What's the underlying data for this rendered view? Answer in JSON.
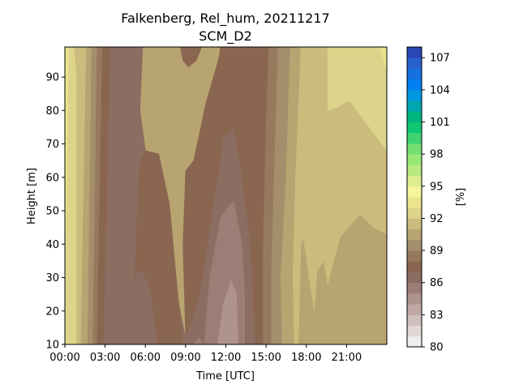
{
  "chart_data": {
    "type": "filled-contour",
    "title": "Falkenberg, Rel_hum, 20211217",
    "subtitle": "SCM_D2",
    "xlabel": "Time [UTC]",
    "ylabel": "Height [m]",
    "xlim": [
      0,
      24
    ],
    "ylim": [
      10,
      99
    ],
    "x_ticks": [
      {
        "value": 0,
        "label": "00:00"
      },
      {
        "value": 3,
        "label": "03:00"
      },
      {
        "value": 6,
        "label": "06:00"
      },
      {
        "value": 9,
        "label": "09:00"
      },
      {
        "value": 12,
        "label": "12:00"
      },
      {
        "value": 15,
        "label": "15:00"
      },
      {
        "value": 18,
        "label": "18:00"
      },
      {
        "value": 21,
        "label": "21:00"
      }
    ],
    "y_ticks": [
      10,
      20,
      30,
      40,
      50,
      60,
      70,
      80,
      90
    ],
    "grid": false,
    "colorbar": {
      "label": "[%]",
      "range": [
        80,
        108
      ],
      "step": 1,
      "ticks": [
        80,
        83,
        86,
        89,
        92,
        95,
        98,
        101,
        104,
        107
      ],
      "colors": [
        "#efeded",
        "#dfd8d6",
        "#cfbfbd",
        "#bfa8a4",
        "#af938d",
        "#9e7d76",
        "#8c6d62",
        "#8a6650",
        "#977a5e",
        "#a58e6c",
        "#b8a470",
        "#cbbb7d",
        "#dcd48a",
        "#ece48c",
        "#f7f59a",
        "#ddee90",
        "#b9e980",
        "#98e878",
        "#72de72",
        "#3fd471",
        "#11c872",
        "#00b77e",
        "#00a6ad",
        "#0096e0",
        "#0080f0",
        "#1870e0",
        "#2860cc",
        "#2a48b4"
      ]
    },
    "contour_regions": [
      {
        "level": 93,
        "points": [
          [
            0,
            10
          ],
          [
            0,
            99
          ],
          [
            0.3,
            99
          ]
        ]
      },
      {
        "level": 92,
        "points": [
          [
            0,
            10
          ],
          [
            0.3,
            99
          ],
          [
            0.7,
            99
          ],
          [
            0.9,
            90
          ],
          [
            0.9,
            10
          ]
        ]
      },
      {
        "level": 91,
        "points": [
          [
            0.9,
            10
          ],
          [
            0.9,
            90
          ],
          [
            0.7,
            99
          ],
          [
            1.6,
            99
          ],
          [
            1.2,
            10
          ]
        ]
      },
      {
        "level": 90,
        "points": [
          [
            1.2,
            10
          ],
          [
            1.6,
            99
          ],
          [
            2.0,
            99
          ],
          [
            1.7,
            10
          ]
        ]
      },
      {
        "level": 89,
        "points": [
          [
            1.7,
            10
          ],
          [
            2.0,
            99
          ],
          [
            2.4,
            99
          ],
          [
            2.1,
            10
          ]
        ]
      },
      {
        "level": 88,
        "points": [
          [
            2.1,
            10
          ],
          [
            2.4,
            99
          ],
          [
            2.8,
            99
          ],
          [
            2.4,
            10
          ]
        ]
      },
      {
        "level": 87,
        "points": [
          [
            2.4,
            10
          ],
          [
            2.8,
            99
          ],
          [
            3.4,
            99
          ],
          [
            2.9,
            10
          ]
        ]
      },
      {
        "level": 86,
        "points": [
          [
            2.9,
            10
          ],
          [
            3.4,
            99
          ],
          [
            5.8,
            99
          ],
          [
            5.6,
            80
          ],
          [
            6.0,
            68
          ],
          [
            7.5,
            40
          ],
          [
            8.5,
            22
          ],
          [
            9.0,
            12
          ],
          [
            10.0,
            24
          ],
          [
            11.0,
            50
          ],
          [
            11.8,
            72
          ],
          [
            12.6,
            75
          ],
          [
            13.2,
            60
          ],
          [
            13.7,
            45
          ],
          [
            14.0,
            30
          ],
          [
            14.2,
            10
          ]
        ]
      },
      {
        "level": 87,
        "points": [
          [
            14.2,
            10
          ],
          [
            14.0,
            30
          ],
          [
            13.7,
            45
          ],
          [
            13.2,
            60
          ],
          [
            12.6,
            75
          ],
          [
            11.8,
            72
          ],
          [
            11.0,
            50
          ],
          [
            10.0,
            24
          ],
          [
            9.0,
            12
          ],
          [
            8.8,
            40
          ],
          [
            9.0,
            62
          ],
          [
            9.6,
            65
          ],
          [
            10.5,
            82
          ],
          [
            11.5,
            96
          ],
          [
            11.6,
            99
          ],
          [
            15.2,
            99
          ],
          [
            15.0,
            75
          ],
          [
            14.8,
            40
          ],
          [
            14.8,
            10
          ]
        ]
      },
      {
        "level": 88,
        "points": [
          [
            14.8,
            10
          ],
          [
            14.8,
            40
          ],
          [
            15.0,
            75
          ],
          [
            15.2,
            99
          ],
          [
            15.9,
            99
          ],
          [
            15.6,
            60
          ],
          [
            15.4,
            30
          ],
          [
            15.4,
            10
          ]
        ]
      },
      {
        "level": 89,
        "points": [
          [
            15.4,
            10
          ],
          [
            15.4,
            30
          ],
          [
            15.6,
            60
          ],
          [
            15.9,
            99
          ],
          [
            16.8,
            99
          ],
          [
            16.5,
            60
          ],
          [
            16.1,
            30
          ],
          [
            16.2,
            10
          ]
        ]
      },
      {
        "level": 90,
        "points": [
          [
            16.2,
            10
          ],
          [
            16.1,
            30
          ],
          [
            16.5,
            60
          ],
          [
            16.8,
            99
          ],
          [
            17.6,
            99
          ],
          [
            17.2,
            60
          ],
          [
            17.0,
            30
          ],
          [
            17.1,
            10
          ]
        ]
      },
      {
        "level": 91,
        "points": [
          [
            17.1,
            10
          ],
          [
            17.0,
            30
          ],
          [
            17.2,
            60
          ],
          [
            17.6,
            99
          ],
          [
            19.6,
            99
          ],
          [
            19.6,
            80
          ],
          [
            20.3,
            81
          ],
          [
            21.2,
            83
          ],
          [
            22.5,
            76
          ],
          [
            24,
            68
          ],
          [
            24,
            43
          ],
          [
            23,
            45
          ],
          [
            22.0,
            49
          ],
          [
            20.5,
            42
          ],
          [
            19.6,
            28
          ],
          [
            19.3,
            35
          ],
          [
            18.8,
            32
          ],
          [
            18.6,
            20
          ],
          [
            18.2,
            30
          ],
          [
            17.8,
            42
          ],
          [
            17.6,
            40
          ],
          [
            17.4,
            10
          ]
        ]
      },
      {
        "level": 92,
        "points": [
          [
            19.6,
            99
          ],
          [
            24,
            99
          ],
          [
            24,
            68
          ],
          [
            22.5,
            76
          ],
          [
            21.2,
            83
          ],
          [
            20.3,
            81
          ],
          [
            19.6,
            80
          ]
        ]
      },
      {
        "level": 93,
        "points": [
          [
            23.5,
            99
          ],
          [
            24,
            99
          ],
          [
            24,
            92
          ]
        ]
      },
      {
        "level": 87,
        "points": [
          [
            4.8,
            10
          ],
          [
            5.2,
            30
          ],
          [
            5.4,
            50
          ],
          [
            5.6,
            65
          ],
          [
            6.0,
            68
          ],
          [
            7.0,
            67
          ],
          [
            7.8,
            52
          ],
          [
            8.3,
            30
          ],
          [
            8.8,
            10
          ]
        ]
      },
      {
        "level": 86,
        "points": [
          [
            4.8,
            10
          ],
          [
            5.0,
            22
          ],
          [
            5.3,
            31
          ],
          [
            5.8,
            32
          ],
          [
            6.4,
            25
          ],
          [
            6.8,
            12
          ],
          [
            7.0,
            10
          ]
        ]
      },
      {
        "level": 85,
        "points": [
          [
            10.4,
            10
          ],
          [
            10.8,
            30
          ],
          [
            11.6,
            48
          ],
          [
            12.6,
            53
          ],
          [
            13.2,
            40
          ],
          [
            13.4,
            25
          ],
          [
            13.4,
            10
          ]
        ]
      },
      {
        "level": 84,
        "points": [
          [
            11.4,
            10
          ],
          [
            11.8,
            22
          ],
          [
            12.4,
            29
          ],
          [
            12.8,
            25
          ],
          [
            12.9,
            10
          ]
        ]
      },
      {
        "level": 85,
        "points": [
          [
            9.6,
            10
          ],
          [
            10.0,
            12
          ],
          [
            10.4,
            10
          ]
        ]
      },
      {
        "level": 87,
        "points": [
          [
            8.6,
            99
          ],
          [
            8.8,
            95
          ],
          [
            9.2,
            93
          ],
          [
            9.8,
            95
          ],
          [
            10.2,
            99
          ]
        ]
      }
    ]
  }
}
